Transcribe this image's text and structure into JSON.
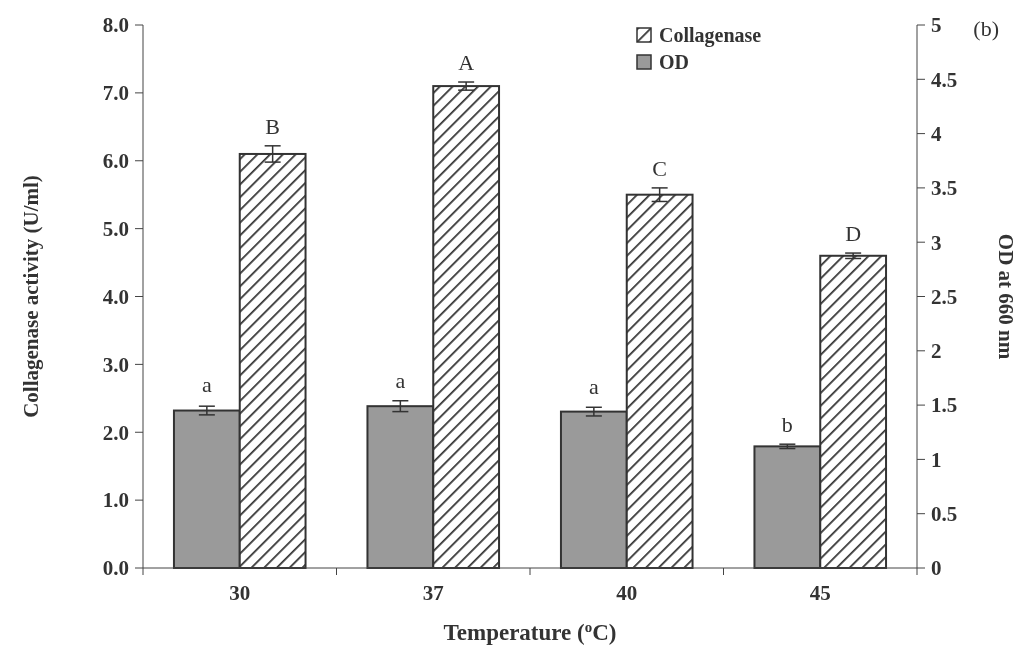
{
  "chart_data": {
    "type": "bar",
    "xlabel": "Temperature ($^{o}$C)",
    "ylabel": "Collagenase activity (U/ml)",
    "y2label": "OD at 660 nm",
    "categories": [
      "30",
      "37",
      "40",
      "45"
    ],
    "series": [
      {
        "name": "OD",
        "color": "#9a9a9a",
        "axis": "y2",
        "values": [
          1.45,
          1.49,
          1.44,
          1.12
        ],
        "errors": [
          0.04,
          0.05,
          0.04,
          0.02
        ]
      },
      {
        "name": "Collagenase",
        "color": "#333333",
        "axis": "y",
        "values": [
          6.1,
          7.1,
          5.5,
          4.6
        ],
        "errors": [
          0.12,
          0.06,
          0.1,
          0.04
        ]
      }
    ],
    "ylim": [
      0,
      8
    ],
    "yticks": [
      {
        "value": 0,
        "label": "0.0"
      },
      {
        "value": 1,
        "label": "1.0"
      },
      {
        "value": 2,
        "label": "2.0"
      },
      {
        "value": 3,
        "label": "3.0"
      },
      {
        "value": 4,
        "label": "4.0"
      },
      {
        "value": 5,
        "label": "5.0"
      },
      {
        "value": 6,
        "label": "6.0"
      },
      {
        "value": 7,
        "label": "7.0"
      },
      {
        "value": 8,
        "label": "8.0"
      }
    ],
    "y2lim": [
      0,
      5
    ],
    "y2ticks": [
      0,
      0.5,
      1,
      1.5,
      2,
      2.5,
      3,
      3.5,
      4,
      4.5,
      5
    ],
    "legend": "top right",
    "grid": false,
    "annotations": [
      {
        "text": "a",
        "x": "30",
        "y": 2.41
      },
      {
        "text": "a",
        "x": "37",
        "y": 2.47
      },
      {
        "text": "a",
        "x": "40",
        "y": 2.39
      },
      {
        "text": "b",
        "x": "45",
        "y": 1.83
      },
      {
        "text": "B",
        "x": "30",
        "y": 6.1
      },
      {
        "text": "A",
        "x": "37",
        "y": 7.1
      },
      {
        "text": "C",
        "x": "40",
        "y": 5.5
      },
      {
        "text": "D",
        "x": "45",
        "y": 4.6
      },
      "(b)"
    ]
  }
}
